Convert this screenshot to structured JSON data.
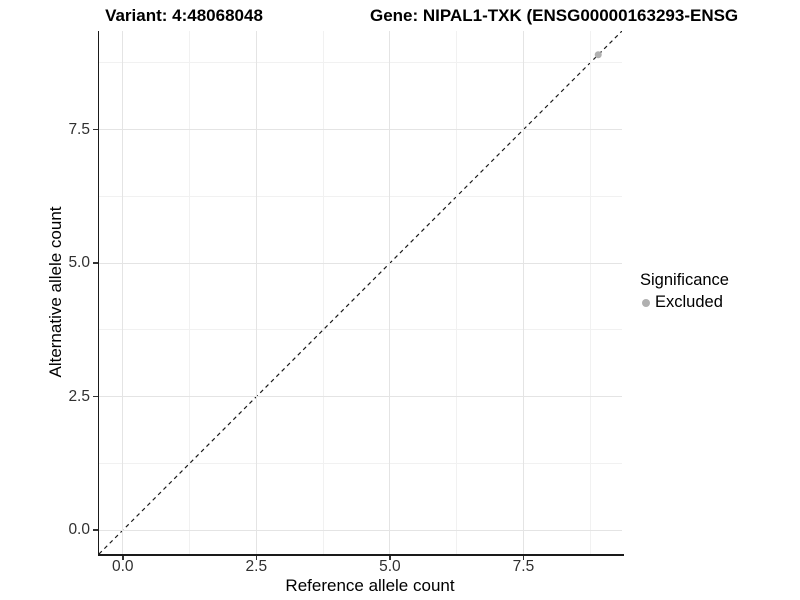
{
  "header": {
    "variant_title": "Variant: 4:48068048",
    "gene_title": "Gene: NIPAL1-TXK (ENSG00000163293-ENSG"
  },
  "chart_data": {
    "type": "scatter",
    "xlabel": "Reference allele count",
    "ylabel": "Alternative allele count",
    "xlim": [
      -0.445,
      9.345
    ],
    "ylim": [
      -0.445,
      9.345
    ],
    "major_ticks": [
      0,
      2.5,
      5,
      7.5
    ],
    "tick_labels": [
      "0.0",
      "2.5",
      "5.0",
      "7.5"
    ],
    "minor_ticks": [
      1.25,
      3.75,
      6.25,
      8.75
    ],
    "grid": "major+minor on white background",
    "identity_line": {
      "style": "dashed",
      "color": "#1a1a1a",
      "from": [
        -0.445,
        -0.445
      ],
      "to": [
        9.345,
        9.345
      ]
    },
    "series": [
      {
        "name": "Excluded",
        "color": "#b0b0b0",
        "points": [
          {
            "x": 8.9,
            "y": 8.9
          }
        ]
      }
    ],
    "legend": {
      "title": "Significance",
      "position": "right",
      "entries": [
        {
          "label": "Excluded",
          "color": "#b0b0b0",
          "marker": "circle"
        }
      ]
    }
  }
}
